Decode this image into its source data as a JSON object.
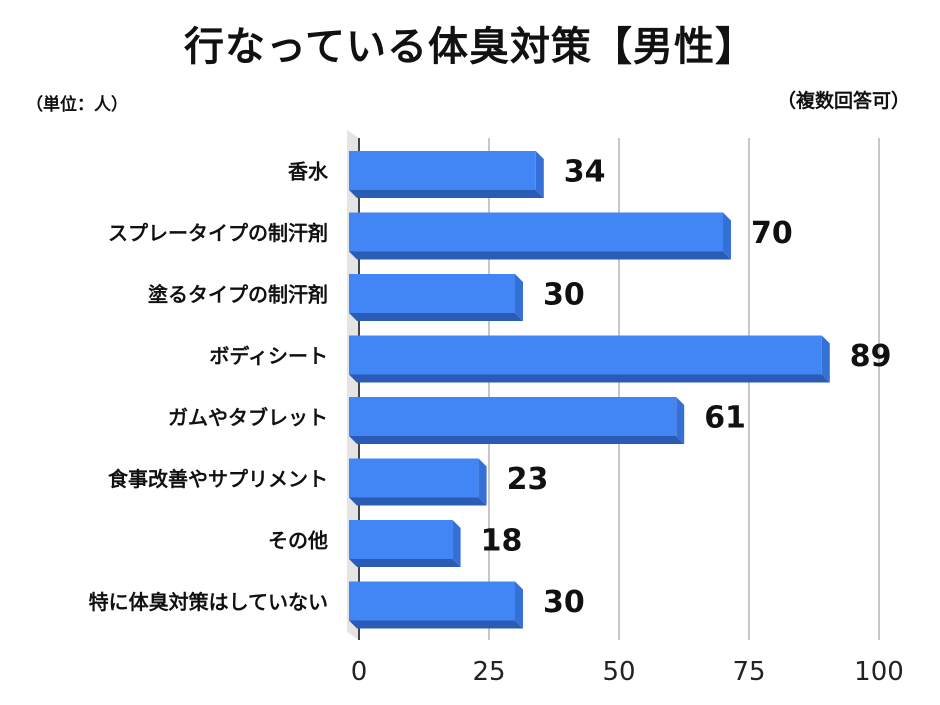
{
  "chart_data": {
    "type": "bar",
    "orientation": "horizontal",
    "title": "行なっている体臭対策【男性】",
    "unit_note": "（単位：人）",
    "answer_note": "（複数回答可）",
    "categories": [
      "香水",
      "スプレータイプの制汗剤",
      "塗るタイプの制汗剤",
      "ボディシート",
      "ガムやタブレット",
      "食事改善やサプリメント",
      "その他",
      "特に体臭対策はしていない"
    ],
    "values": [
      34,
      70,
      30,
      89,
      61,
      23,
      18,
      30
    ],
    "value_labels": [
      "34",
      "70",
      "30",
      "89",
      "61",
      "23",
      "18",
      "30"
    ],
    "xlim": [
      0,
      100
    ],
    "xticks": [
      "0",
      "25",
      "50",
      "75",
      "100"
    ],
    "grid": true,
    "bar_color": "#4285f4",
    "bar_shadow_color": "#2a5bb5"
  }
}
